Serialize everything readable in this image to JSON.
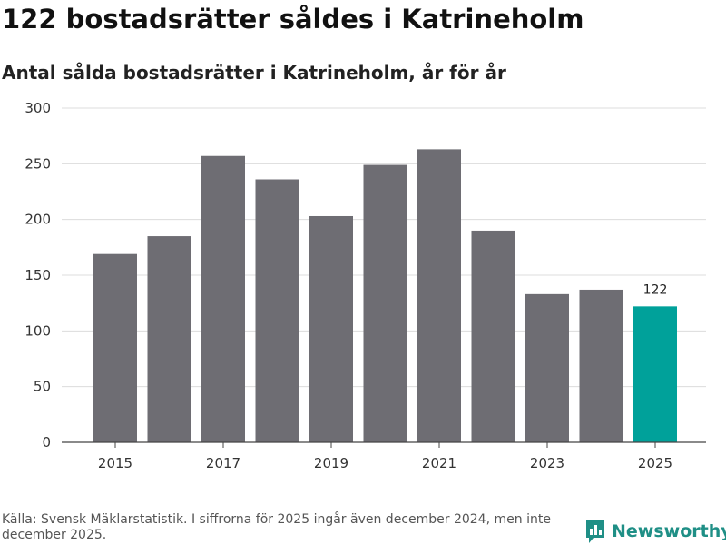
{
  "header": {
    "title": "122 bostadsrätter såldes i Katrineholm",
    "subtitle": "Antal sålda bostadsrätter i Katrineholm, år för år"
  },
  "footer": {
    "source": "Källa: Svensk Mäklarstatistik. I siffrorna för 2025 ingår även december 2024, men inte december 2025.",
    "brand": "Newsworthy"
  },
  "colors": {
    "bar": "#6e6d73",
    "highlight": "#00a19a",
    "grid": "#dcdcdc",
    "axis": "#444444",
    "brand": "#1f8f86"
  },
  "chart_data": {
    "type": "bar",
    "title": "Antal sålda bostadsrätter i Katrineholm, år för år",
    "xlabel": "",
    "ylabel": "",
    "categories": [
      "2015",
      "2016",
      "2017",
      "2018",
      "2019",
      "2020",
      "2021",
      "2022",
      "2023",
      "2024",
      "2025"
    ],
    "values": [
      169,
      185,
      257,
      236,
      203,
      249,
      263,
      190,
      133,
      137,
      122
    ],
    "ylim": [
      0,
      300
    ],
    "yticks": [
      0,
      50,
      100,
      150,
      200,
      250,
      300
    ],
    "xtick_labels": [
      "2015",
      "2017",
      "2019",
      "2021",
      "2023",
      "2025"
    ],
    "highlight_category": "2025",
    "data_labels": [
      {
        "category": "2025",
        "text": "122"
      }
    ],
    "grid": true
  }
}
